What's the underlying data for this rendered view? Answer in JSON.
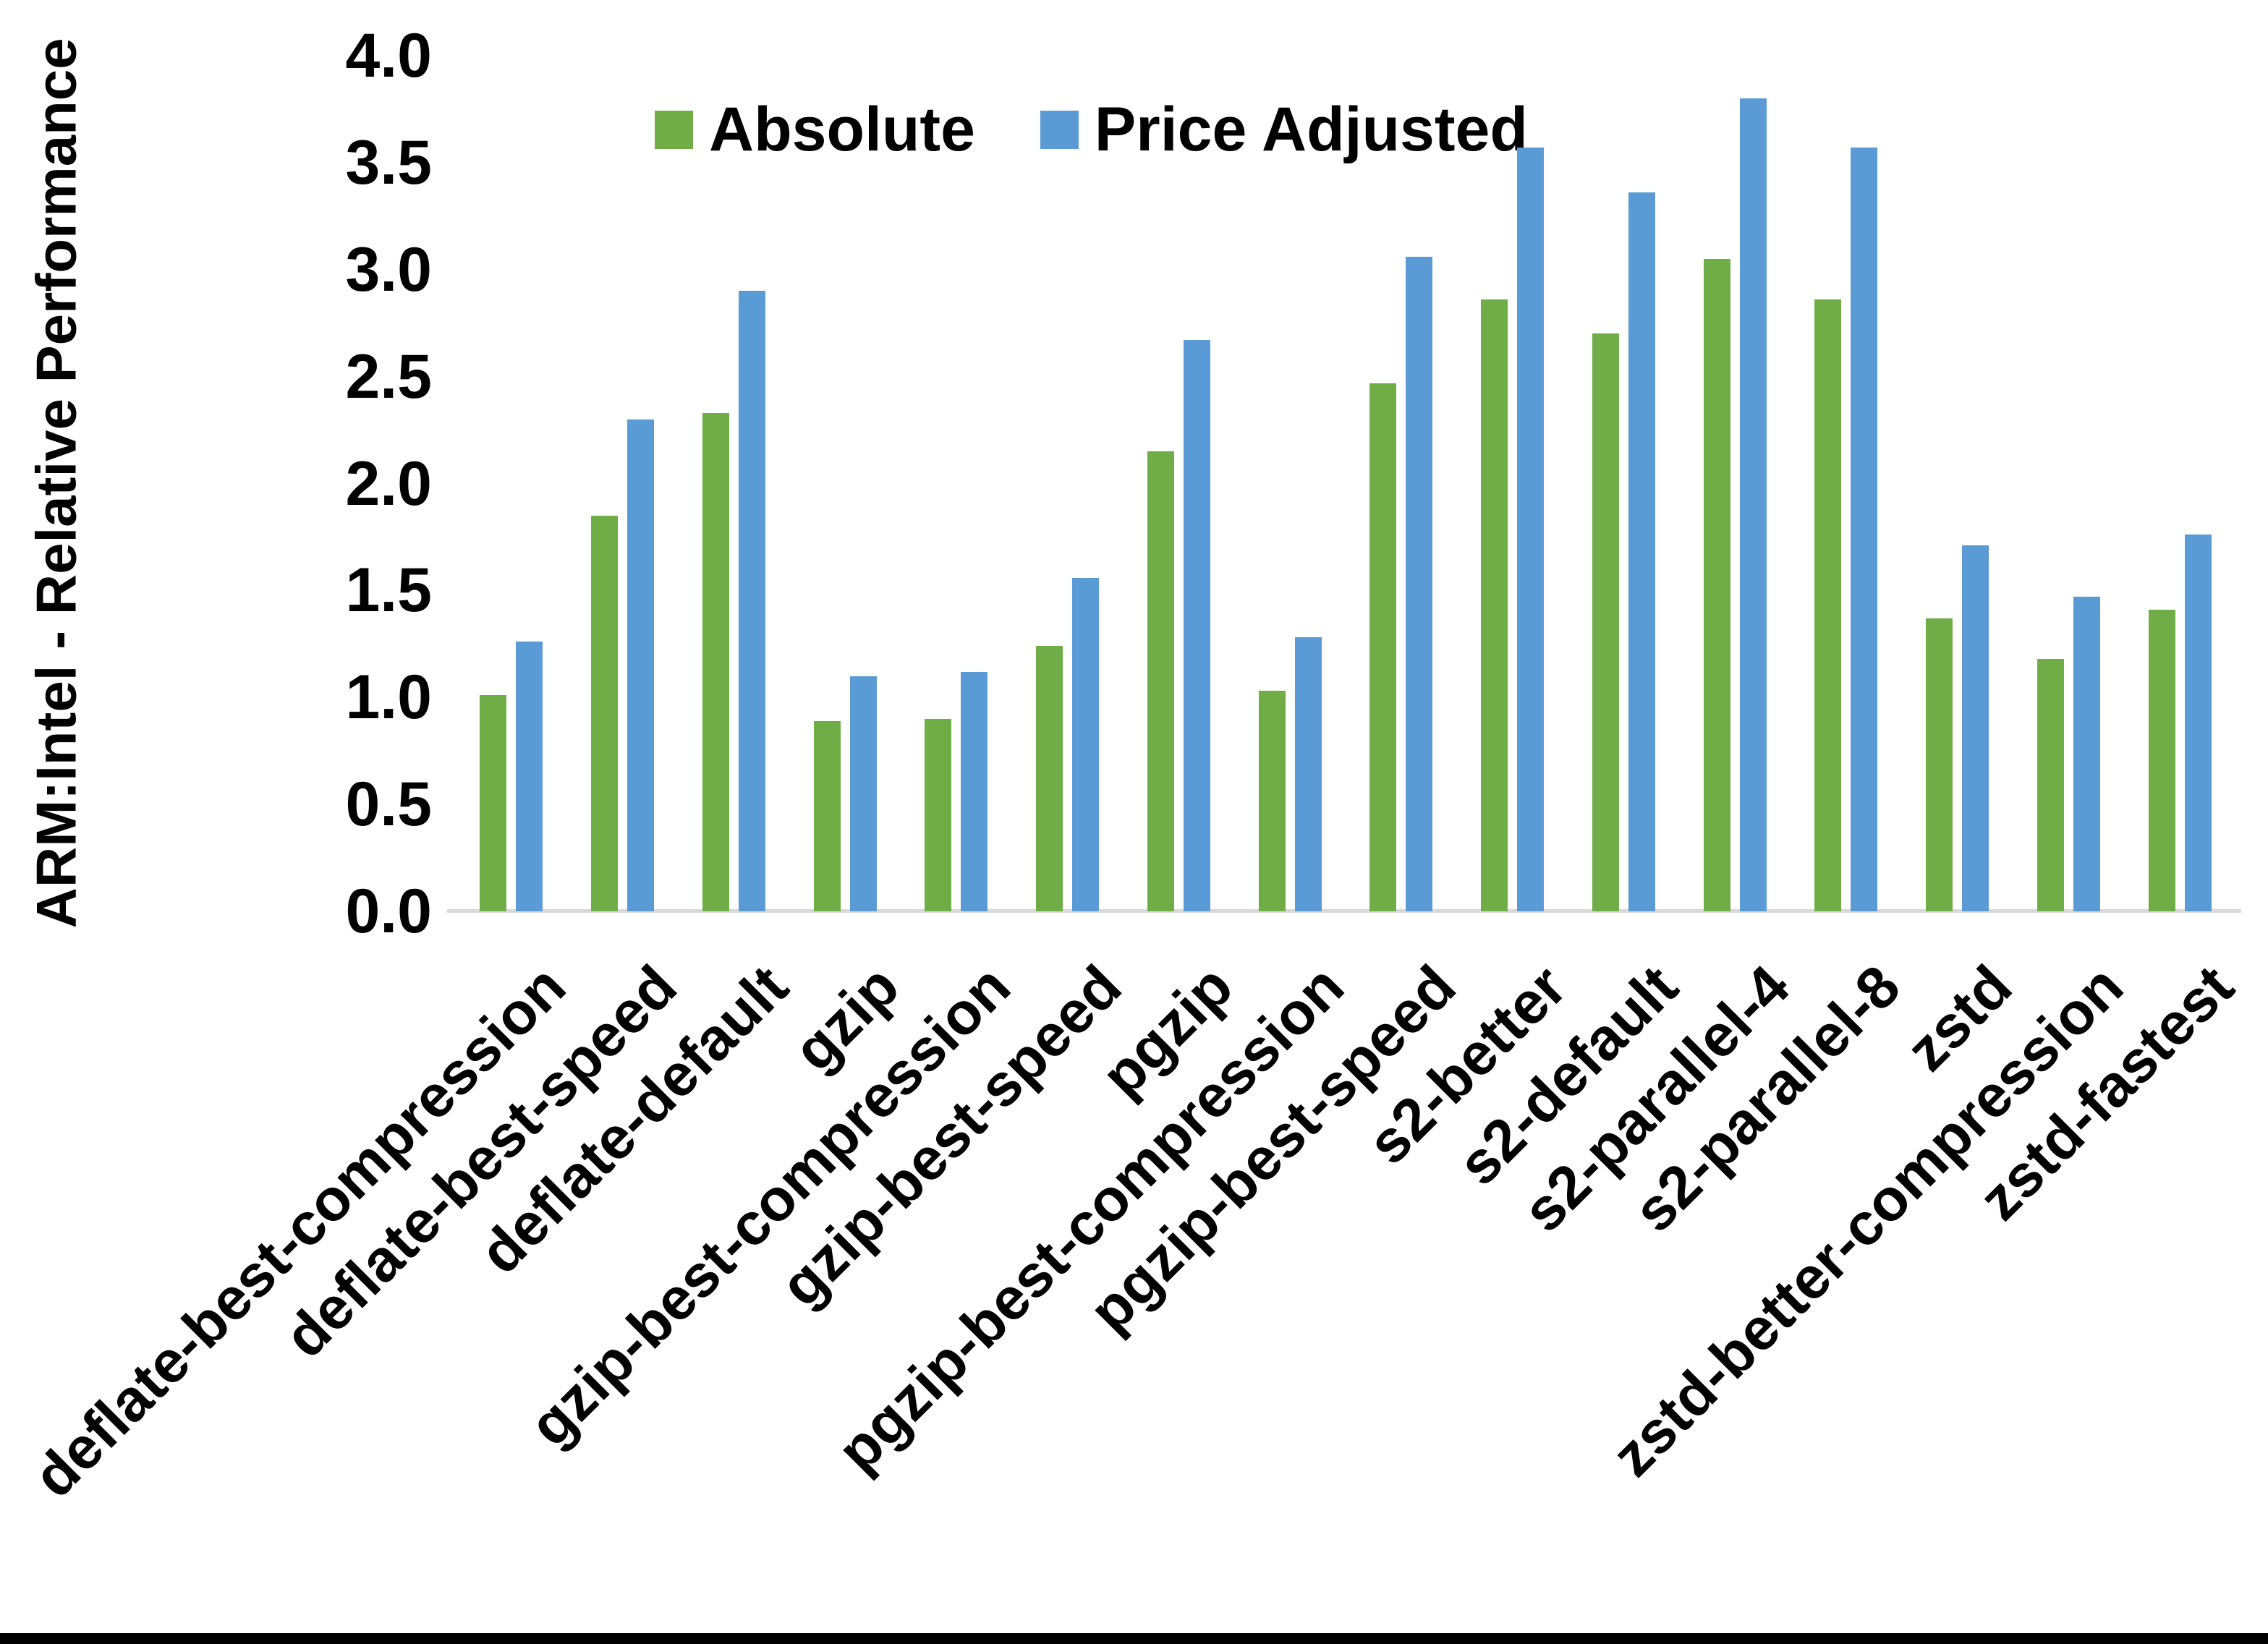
{
  "chart_data": {
    "type": "bar",
    "title": "",
    "xlabel": "",
    "ylabel": "ARM:Intel - Relative Performance",
    "ylim": [
      0.0,
      4.0
    ],
    "ytick_step": 0.5,
    "ytick_labels": [
      "0.0",
      "0.5",
      "1.0",
      "1.5",
      "2.0",
      "2.5",
      "3.0",
      "3.5",
      "4.0"
    ],
    "grid": false,
    "legend_position": "top-center",
    "categories": [
      "deflate-best-compression",
      "deflate-best-speed",
      "deflate-default",
      "gzip",
      "gzip-best-compression",
      "gzip-best-speed",
      "pgzip",
      "pgzip-best-compression",
      "pgzip-best-speed",
      "s2-better",
      "s2-default",
      "s2-parallel-4",
      "s2-parallel-8",
      "zstd",
      "zstd-better-compression",
      "zstd-fastest"
    ],
    "series": [
      {
        "name": "Absolute",
        "color": "#70AD47",
        "values": [
          1.01,
          1.85,
          2.33,
          0.89,
          0.9,
          1.24,
          2.15,
          1.03,
          2.47,
          2.86,
          2.7,
          3.05,
          2.86,
          1.37,
          1.18,
          1.41
        ]
      },
      {
        "name": "Price Adjusted",
        "color": "#5B9BD5",
        "values": [
          1.26,
          2.3,
          2.9,
          1.1,
          1.12,
          1.56,
          2.67,
          1.28,
          3.06,
          3.57,
          3.36,
          3.8,
          3.57,
          1.71,
          1.47,
          1.76
        ]
      }
    ]
  },
  "colors": {
    "axis_line": "#D9D9D9",
    "text": "#000000",
    "background": "#FFFFFF",
    "bottom_border": "#000000"
  }
}
